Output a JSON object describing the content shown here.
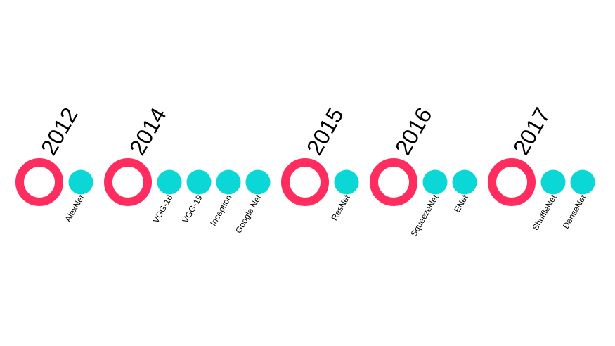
{
  "colors": {
    "year_ring": "#FF2D5F",
    "model_dot": "#0BD8D6",
    "text": "#000000",
    "background": "#FFFFFF"
  },
  "timeline": {
    "groups": [
      {
        "year": "2012",
        "models": [
          "AlexNet"
        ]
      },
      {
        "year": "2014",
        "models": [
          "VGG-16",
          "VGG-19",
          "Inception",
          "Google Net"
        ]
      },
      {
        "year": "2015",
        "models": [
          "ResNet"
        ]
      },
      {
        "year": "2016",
        "models": [
          "SqueezeNet",
          "ENet"
        ]
      },
      {
        "year": "2017",
        "models": [
          "ShuffleNet",
          "DenseNet"
        ]
      }
    ]
  }
}
